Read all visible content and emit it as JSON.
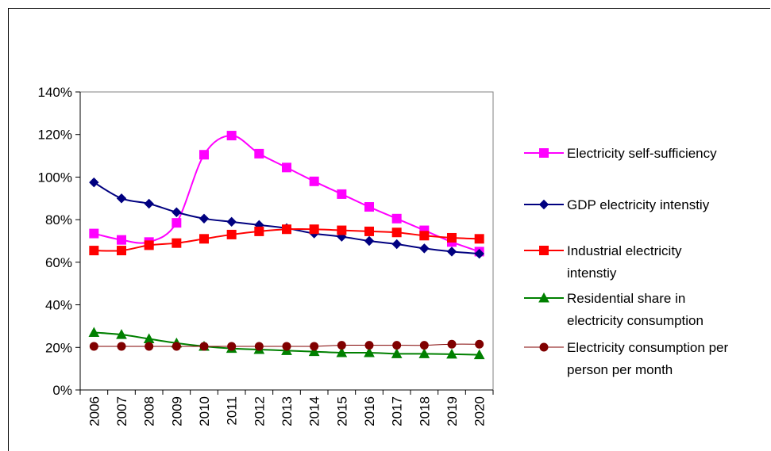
{
  "chart_data": {
    "type": "line",
    "title": "",
    "xlabel": "",
    "ylabel": "",
    "categories": [
      "2006",
      "2007",
      "2008",
      "2009",
      "2010",
      "2011",
      "2012",
      "2013",
      "2014",
      "2015",
      "2016",
      "2017",
      "2018",
      "2019",
      "2020"
    ],
    "ylim": [
      0,
      1.4
    ],
    "yticks": [
      "0%",
      "20%",
      "40%",
      "60%",
      "80%",
      "100%",
      "120%",
      "140%"
    ],
    "grid": false,
    "legend_position": "right",
    "series": [
      {
        "name": "Electricity self-sufficiency",
        "color": "#ff00ff",
        "marker": "square",
        "values": [
          0.735,
          0.705,
          0.695,
          0.785,
          1.105,
          1.195,
          1.11,
          1.045,
          0.98,
          0.92,
          0.86,
          0.805,
          0.75,
          0.695,
          0.65
        ]
      },
      {
        "name": "GDP electricity intenstiy",
        "color": "#000080",
        "marker": "diamond",
        "values": [
          0.975,
          0.9,
          0.875,
          0.835,
          0.805,
          0.79,
          0.775,
          0.76,
          0.735,
          0.72,
          0.7,
          0.685,
          0.665,
          0.65,
          0.64
        ]
      },
      {
        "name": "Industrial electricity intenstiy",
        "color": "#ff0000",
        "marker": "square",
        "values": [
          0.655,
          0.655,
          0.68,
          0.69,
          0.71,
          0.73,
          0.745,
          0.755,
          0.755,
          0.75,
          0.745,
          0.74,
          0.725,
          0.715,
          0.71
        ]
      },
      {
        "name": "Residential share in electricity consumption",
        "color": "#008000",
        "marker": "triangle",
        "values": [
          0.27,
          0.26,
          0.24,
          0.22,
          0.205,
          0.195,
          0.19,
          0.185,
          0.18,
          0.175,
          0.175,
          0.17,
          0.17,
          0.168,
          0.165
        ]
      },
      {
        "name": "Electricity consumption per person per month",
        "color": "#800000",
        "marker": "circle",
        "values": [
          0.205,
          0.205,
          0.205,
          0.205,
          0.205,
          0.205,
          0.205,
          0.205,
          0.205,
          0.21,
          0.21,
          0.21,
          0.21,
          0.215,
          0.215
        ]
      }
    ]
  }
}
